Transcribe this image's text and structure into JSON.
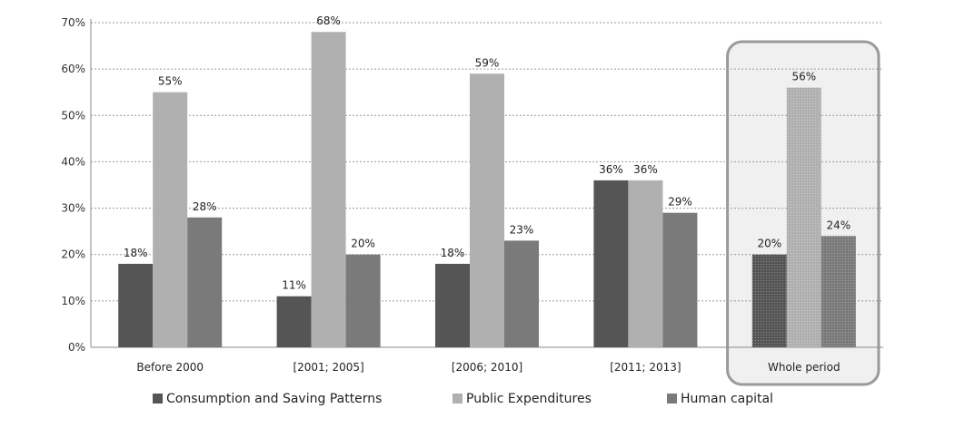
{
  "chart_data": {
    "type": "bar",
    "categories": [
      "Before 2000",
      "[2001; 2005]",
      "[2006; 2010]",
      "[2011; 2013]",
      "Whole period"
    ],
    "series": [
      {
        "name": "Consumption and Saving Patterns",
        "values": [
          18,
          11,
          18,
          36,
          20
        ],
        "labels": [
          "18%",
          "11%",
          "18%",
          "36%",
          "20%"
        ],
        "color": "#555555"
      },
      {
        "name": "Public Expenditures",
        "values": [
          55,
          68,
          59,
          36,
          56
        ],
        "labels": [
          "55%",
          "68%",
          "59%",
          "36%",
          "56%"
        ],
        "color": "#b0b0b0"
      },
      {
        "name": "Human capital",
        "values": [
          28,
          20,
          23,
          29,
          24
        ],
        "labels": [
          "28%",
          "20%",
          "23%",
          "29%",
          "24%"
        ],
        "color": "#7a7a7a"
      }
    ],
    "ylim": [
      0,
      70
    ],
    "yticks": [
      "0%",
      "10%",
      "20%",
      "30%",
      "40%",
      "50%",
      "60%",
      "70%"
    ],
    "grid": true,
    "legend_position": "bottom",
    "highlighted_category": "Whole period",
    "title": "",
    "xlabel": "",
    "ylabel": ""
  }
}
